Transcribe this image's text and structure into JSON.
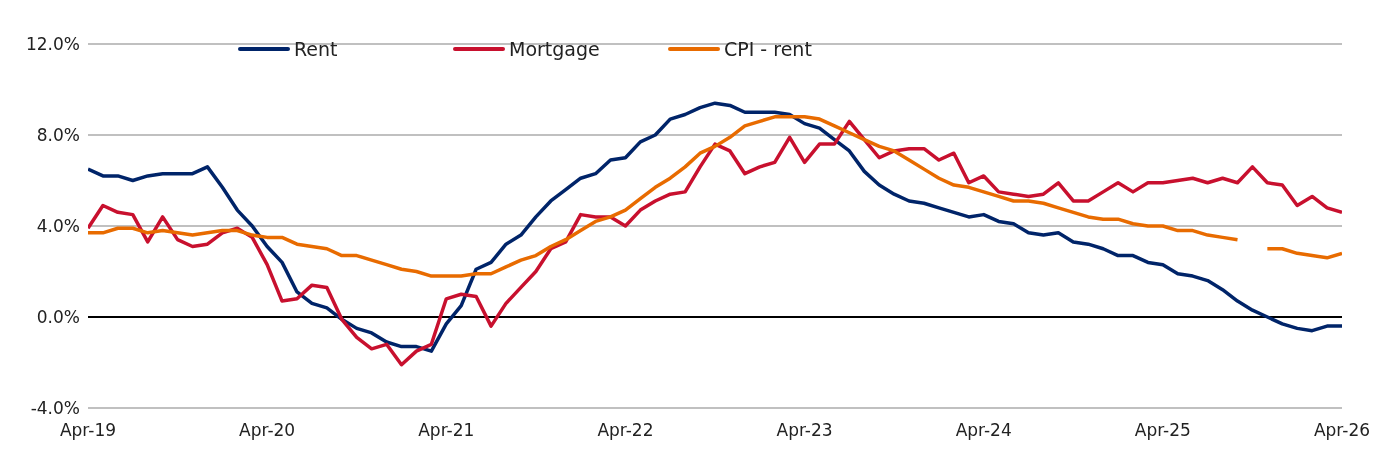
{
  "chart_data": {
    "type": "line",
    "x": [
      "2019-04",
      "2019-05",
      "2019-06",
      "2019-07",
      "2019-08",
      "2019-09",
      "2019-10",
      "2019-11",
      "2019-12",
      "2020-01",
      "2020-02",
      "2020-03",
      "2020-04",
      "2020-05",
      "2020-06",
      "2020-07",
      "2020-08",
      "2020-09",
      "2020-10",
      "2020-11",
      "2020-12",
      "2021-01",
      "2021-02",
      "2021-03",
      "2021-04",
      "2021-05",
      "2021-06",
      "2021-07",
      "2021-08",
      "2021-09",
      "2021-10",
      "2021-11",
      "2021-12",
      "2022-01",
      "2022-02",
      "2022-03",
      "2022-04",
      "2022-05",
      "2022-06",
      "2022-07",
      "2022-08",
      "2022-09",
      "2022-10",
      "2022-11",
      "2022-12",
      "2023-01",
      "2023-02",
      "2023-03",
      "2023-04",
      "2023-05",
      "2023-06",
      "2023-07",
      "2023-08",
      "2023-09",
      "2023-10",
      "2023-11",
      "2023-12",
      "2024-01",
      "2024-02",
      "2024-03",
      "2024-04",
      "2024-05",
      "2024-06",
      "2024-07",
      "2024-08",
      "2024-09",
      "2024-10",
      "2024-11",
      "2024-12",
      "2025-01",
      "2025-02",
      "2025-03",
      "2025-04",
      "2025-05",
      "2025-06",
      "2025-07",
      "2025-08",
      "2025-09",
      "2025-10",
      "2025-11",
      "2025-12",
      "2026-01",
      "2026-02",
      "2026-03",
      "2026-04"
    ],
    "series": [
      {
        "name": "Rent",
        "color": "#002469",
        "values": [
          6.5,
          6.2,
          6.2,
          6.0,
          6.2,
          6.3,
          6.3,
          6.3,
          6.6,
          5.7,
          4.7,
          4.0,
          3.1,
          2.4,
          1.1,
          0.6,
          0.4,
          -0.1,
          -0.5,
          -0.7,
          -1.1,
          -1.3,
          -1.3,
          -1.5,
          -0.3,
          0.5,
          2.1,
          2.4,
          3.2,
          3.6,
          4.4,
          5.1,
          5.6,
          6.1,
          6.3,
          6.9,
          7.0,
          7.7,
          8.0,
          8.7,
          8.9,
          9.2,
          9.4,
          9.3,
          9.0,
          9.0,
          9.0,
          8.9,
          8.5,
          8.3,
          7.8,
          7.3,
          6.4,
          5.8,
          5.4,
          5.1,
          5.0,
          4.8,
          4.6,
          4.4,
          4.5,
          4.2,
          4.1,
          3.7,
          3.6,
          3.7,
          3.3,
          3.2,
          3.0,
          2.7,
          2.7,
          2.4,
          2.3,
          1.9,
          1.8,
          1.6,
          1.2,
          0.7,
          0.3,
          0.0,
          -0.3,
          -0.5,
          -0.6,
          -0.4,
          -0.4
        ]
      },
      {
        "name": "Mortgage",
        "color": "#c8102e",
        "values": [
          3.9,
          4.9,
          4.6,
          4.5,
          3.3,
          4.4,
          3.4,
          3.1,
          3.2,
          3.7,
          3.9,
          3.5,
          2.3,
          0.7,
          0.8,
          1.4,
          1.3,
          -0.1,
          -0.9,
          -1.4,
          -1.2,
          -2.1,
          -1.5,
          -1.2,
          0.8,
          1.0,
          0.9,
          -0.4,
          0.6,
          1.3,
          2.0,
          3.0,
          3.3,
          4.5,
          4.4,
          4.4,
          4.0,
          4.7,
          5.1,
          5.4,
          5.5,
          6.6,
          7.6,
          7.3,
          6.3,
          6.6,
          6.8,
          7.9,
          6.8,
          7.6,
          7.6,
          8.6,
          7.8,
          7.0,
          7.3,
          7.4,
          7.4,
          6.9,
          7.2,
          5.9,
          6.2,
          5.5,
          5.4,
          5.3,
          5.4,
          5.9,
          5.1,
          5.1,
          5.5,
          5.9,
          5.5,
          5.9,
          5.9,
          6.0,
          6.1,
          5.9,
          6.1,
          5.9,
          6.6,
          5.9,
          5.8,
          4.9,
          5.3,
          4.8,
          4.6
        ]
      },
      {
        "name": "CPI - rent",
        "color": "#e86b00",
        "values": [
          3.7,
          3.7,
          3.9,
          3.9,
          3.7,
          3.8,
          3.7,
          3.6,
          3.7,
          3.8,
          3.8,
          3.6,
          3.5,
          3.5,
          3.2,
          3.1,
          3.0,
          2.7,
          2.7,
          2.5,
          2.3,
          2.1,
          2.0,
          1.8,
          1.8,
          1.8,
          1.9,
          1.9,
          2.2,
          2.5,
          2.7,
          3.1,
          3.4,
          3.8,
          4.2,
          4.4,
          4.7,
          5.2,
          5.7,
          6.1,
          6.6,
          7.2,
          7.5,
          7.9,
          8.4,
          8.6,
          8.8,
          8.8,
          8.8,
          8.7,
          8.4,
          8.1,
          7.8,
          7.5,
          7.3,
          6.9,
          6.5,
          6.1,
          5.8,
          5.7,
          5.5,
          5.3,
          5.1,
          5.1,
          5.0,
          4.8,
          4.6,
          4.4,
          4.3,
          4.3,
          4.1,
          4.0,
          4.0,
          3.8,
          3.8,
          3.6,
          3.5,
          3.4,
          null,
          3.0,
          3.0,
          2.8,
          2.7,
          2.6,
          2.8
        ]
      }
    ],
    "xlim": [
      "2019-04",
      "2026-04"
    ],
    "xticks": [
      {
        "value": "2019-04",
        "label": "Apr-19"
      },
      {
        "value": "2020-04",
        "label": "Apr-20"
      },
      {
        "value": "2021-04",
        "label": "Apr-21"
      },
      {
        "value": "2022-04",
        "label": "Apr-22"
      },
      {
        "value": "2023-04",
        "label": "Apr-23"
      },
      {
        "value": "2024-04",
        "label": "Apr-24"
      },
      {
        "value": "2025-04",
        "label": "Apr-25"
      },
      {
        "value": "2026-04",
        "label": "Apr-26"
      }
    ],
    "ylim": [
      -4,
      12
    ],
    "yticks": [
      {
        "value": -4,
        "label": "-4.0%"
      },
      {
        "value": 0,
        "label": "0.0%"
      },
      {
        "value": 4,
        "label": "4.0%"
      },
      {
        "value": 8,
        "label": "8.0%"
      },
      {
        "value": 12,
        "label": "12.0%"
      }
    ],
    "ref_lines": [
      {
        "axis": "y",
        "value": 0,
        "color": "#000000"
      }
    ],
    "grid": "y",
    "legend": "top left",
    "marker": "none",
    "line_style": "solid"
  }
}
